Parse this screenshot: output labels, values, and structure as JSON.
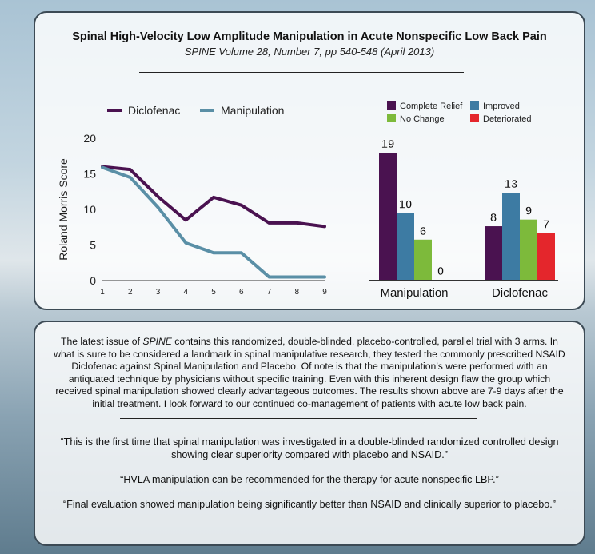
{
  "header": {
    "title": "Spinal High-Velocity Low Amplitude Manipulation in Acute Nonspecific Low Back Pain",
    "subtitle": "SPINE Volume 28, Number 7, pp 540-548 (April 2013)"
  },
  "chart_data": [
    {
      "type": "line",
      "title": "",
      "xlabel": "",
      "ylabel": "Roland Morris Score",
      "x": [
        1,
        2,
        3,
        4,
        5,
        6,
        7,
        8,
        9
      ],
      "xlim": [
        1,
        9
      ],
      "ylim": [
        0,
        20
      ],
      "yticks": [
        0,
        5,
        10,
        15,
        20
      ],
      "legend_position": "top-left",
      "series": [
        {
          "name": "Diclofenac",
          "color": "#4a1250",
          "values": [
            16,
            15.6,
            11.8,
            8.5,
            11.7,
            10.6,
            8.1,
            8.1,
            7.6
          ]
        },
        {
          "name": "Manipulation",
          "color": "#5a8fa6",
          "values": [
            15.9,
            14.5,
            10.3,
            5.3,
            3.9,
            3.9,
            0.5,
            0.5,
            0.5
          ]
        }
      ]
    },
    {
      "type": "bar",
      "title": "",
      "xlabel": "",
      "ylabel": "",
      "categories": [
        "Manipulation",
        "Diclofenac"
      ],
      "ylim": [
        0,
        19
      ],
      "legend_position": "top",
      "series": [
        {
          "name": "Complete Relief",
          "color": "#4a1250",
          "values": [
            19,
            8
          ]
        },
        {
          "name": "Improved",
          "color": "#3d7ba3",
          "values": [
            10,
            13
          ]
        },
        {
          "name": "No Change",
          "color": "#7dba3b",
          "values": [
            6,
            9
          ]
        },
        {
          "name": "Deteriorated",
          "color": "#e4262c",
          "values": [
            0,
            7
          ]
        }
      ]
    }
  ],
  "body": {
    "paragraph_pre": "The latest issue of ",
    "paragraph_journal": "SPINE",
    "paragraph_post": " contains this randomized, double-blinded, placebo-controlled, parallel trial with 3 arms. In what is sure to be considered a landmark in spinal manipulative research, they tested the commonly prescribed NSAID Diclofenac against Spinal Manipulation and Placebo.  Of note is that the manipulation’s were performed with an antiquated technique by physicians without specific training.  Even with this inherent design flaw the group which received spinal manipulation showed clearly advantageous outcomes.  The results shown above are 7-9 days after the initial treatment.  I look forward to our continued co-management of patients with acute low back pain.",
    "quotes": [
      "“This is the first time that spinal manipulation was investigated in a double-blinded randomized controlled design showing clear superiority compared with placebo and NSAID.”",
      "“HVLA manipulation can be recommended for the therapy for acute nonspecific LBP.”",
      "“Final evaluation showed manipulation being significantly better than NSAID and clinically superior to placebo.”"
    ]
  }
}
